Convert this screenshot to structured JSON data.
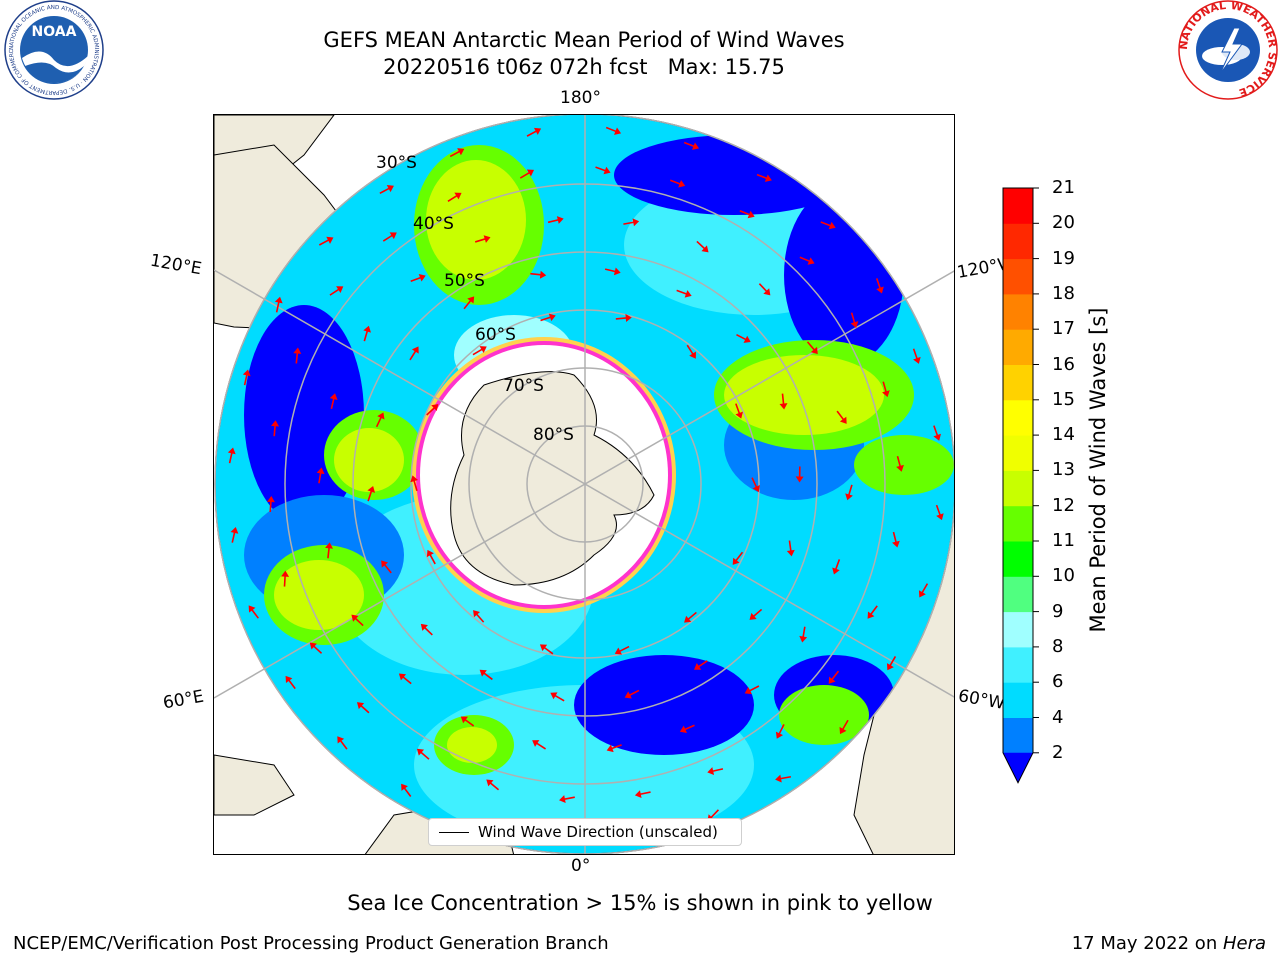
{
  "header": {
    "title_line1": "GEFS MEAN Antarctic Mean Period of Wind Waves",
    "title_line2_date": "20220516 t06z 072h fcst",
    "title_line2_max": "Max: 15.75"
  },
  "logos": {
    "left": {
      "name": "noaa-logo",
      "text": "NOAA",
      "ring_text": "NATIONAL OCEANIC AND ATMOSPHERIC ADMINISTRATION · U.S. DEPARTMENT OF COMMERCE"
    },
    "right": {
      "name": "national-weather-service-logo",
      "ring_text": "NATIONAL WEATHER SERVICE"
    }
  },
  "map": {
    "projection": "south-polar-stereographic",
    "longitude_labels": {
      "top": "180°",
      "bottom": "0°",
      "upper_left": "120°E",
      "upper_right": "120°W",
      "lower_left": "60°E",
      "lower_right": "60°W"
    },
    "latitude_labels": [
      "30°S",
      "40°S",
      "50°S",
      "60°S",
      "70°S",
      "80°S"
    ],
    "colors": {
      "land": "#efebdc",
      "ice": "#ffffff",
      "ice_edge_pink": "#ff33cc",
      "ice_edge_yellow": "#ffd24d",
      "arrow": "#ff0000",
      "grid": "#b0b0b0"
    }
  },
  "colorbar": {
    "label": "Mean Period of Wind Waves [s]",
    "ticks": [
      "2",
      "4",
      "6",
      "8",
      "9",
      "10",
      "11",
      "12",
      "13",
      "14",
      "15",
      "16",
      "17",
      "18",
      "19",
      "20",
      "21"
    ],
    "colors": [
      "#0000ff",
      "#0080ff",
      "#00dcff",
      "#40f0ff",
      "#a0ffff",
      "#50ff80",
      "#00ff00",
      "#66ff00",
      "#c8ff00",
      "#f0ff00",
      "#ffff00",
      "#ffd200",
      "#ffaa00",
      "#ff8200",
      "#ff5000",
      "#ff2800",
      "#ff0000"
    ],
    "extend": "min"
  },
  "legend": {
    "label": "Wind Wave Direction (unscaled)"
  },
  "note": "Sea Ice Concentration > 15% is shown in pink to yellow",
  "footer": {
    "left": "NCEP/EMC/Verification Post Processing Product Generation Branch",
    "right_date": "17 May 2022 on ",
    "right_host": "Hera"
  }
}
